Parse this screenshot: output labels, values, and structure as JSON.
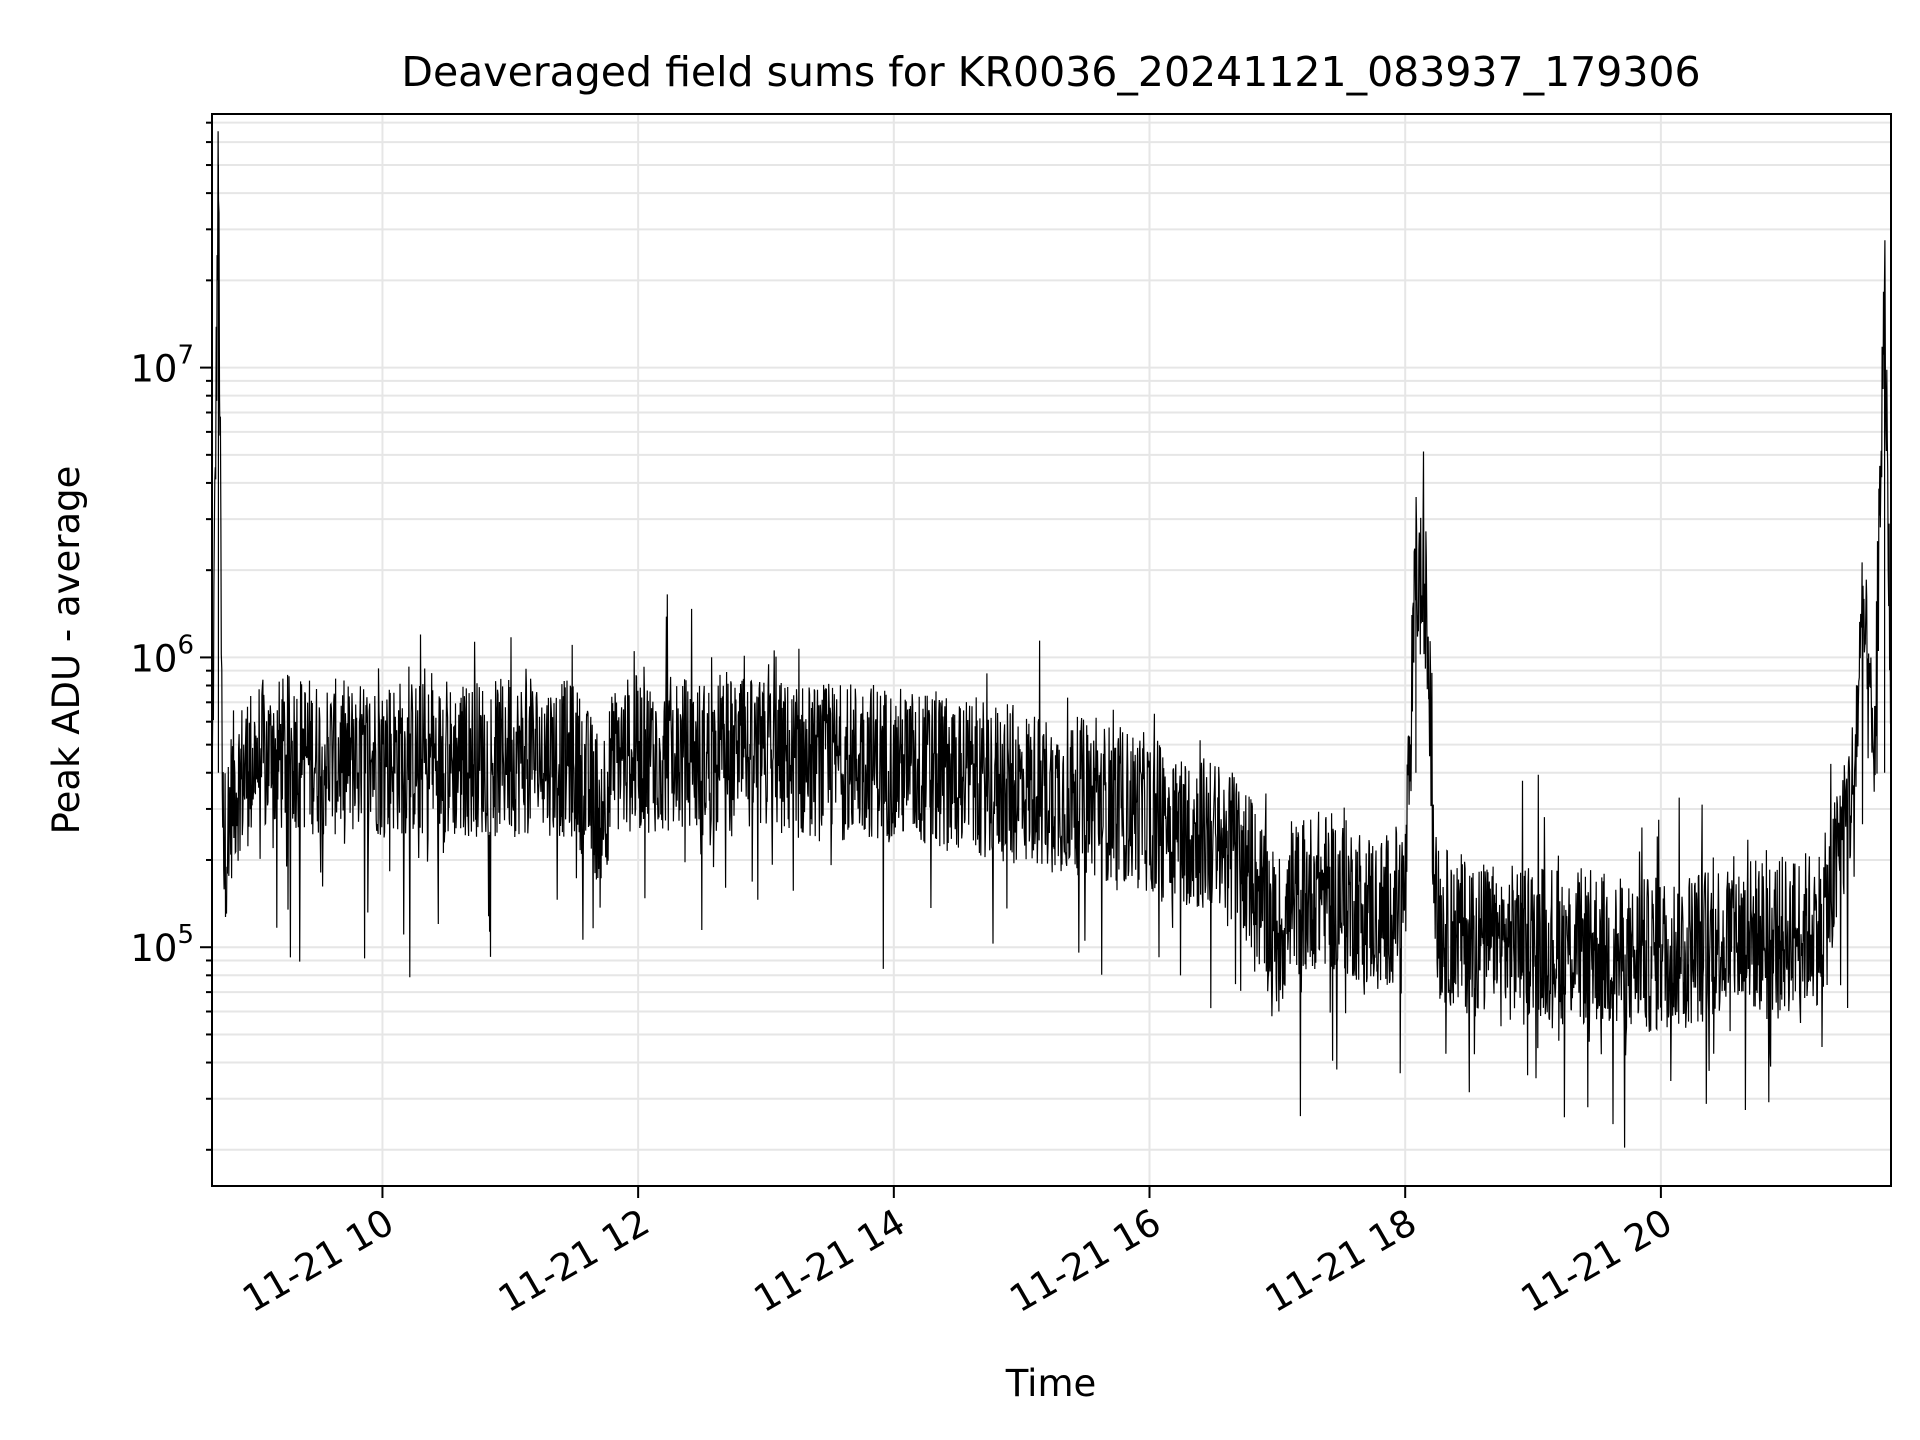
{
  "chart_data": {
    "type": "line",
    "title": "Deaveraged field sums for KR0036_20241121_083937_179306",
    "xlabel": "Time",
    "ylabel": "Peak ADU - average",
    "yscale": "log",
    "xlim": [
      "2024-11-21 08:40",
      "2024-11-21 21:48"
    ],
    "ylim": [
      15000,
      75000000
    ],
    "x_ticks": [
      {
        "value": "2024-11-21 10:00",
        "label": "11-21 10"
      },
      {
        "value": "2024-11-21 12:00",
        "label": "11-21 12"
      },
      {
        "value": "2024-11-21 14:00",
        "label": "11-21 14"
      },
      {
        "value": "2024-11-21 16:00",
        "label": "11-21 16"
      },
      {
        "value": "2024-11-21 18:00",
        "label": "11-21 18"
      },
      {
        "value": "2024-11-21 20:00",
        "label": "11-21 20"
      }
    ],
    "y_ticks": [
      {
        "value": 100000,
        "base": "10",
        "exp": "5"
      },
      {
        "value": 1000000,
        "base": "10",
        "exp": "6"
      },
      {
        "value": 10000000,
        "base": "10",
        "exp": "7"
      }
    ],
    "grid": true,
    "line_color": "#000000",
    "series": [
      {
        "x": [
          "2024-11-21 08:40",
          "2024-11-21 08:43",
          "2024-11-21 08:45",
          "2024-11-21 08:50",
          "2024-11-21 09:00",
          "2024-11-21 09:10",
          "2024-11-21 09:20",
          "2024-11-21 09:30",
          "2024-11-21 09:40",
          "2024-11-21 09:50",
          "2024-11-21 10:00",
          "2024-11-21 10:15",
          "2024-11-21 10:30",
          "2024-11-21 10:45",
          "2024-11-21 11:00",
          "2024-11-21 11:15",
          "2024-11-21 11:30",
          "2024-11-21 11:42",
          "2024-11-21 11:50",
          "2024-11-21 12:00",
          "2024-11-21 12:15",
          "2024-11-21 12:30",
          "2024-11-21 12:45",
          "2024-11-21 13:00",
          "2024-11-21 13:15",
          "2024-11-21 13:30",
          "2024-11-21 13:45",
          "2024-11-21 14:00",
          "2024-11-21 14:15",
          "2024-11-21 14:30",
          "2024-11-21 14:45",
          "2024-11-21 15:00",
          "2024-11-21 15:15",
          "2024-11-21 15:30",
          "2024-11-21 15:45",
          "2024-11-21 16:00",
          "2024-11-21 16:15",
          "2024-11-21 16:30",
          "2024-11-21 16:45",
          "2024-11-21 17:00",
          "2024-11-21 17:10",
          "2024-11-21 17:20",
          "2024-11-21 17:30",
          "2024-11-21 17:40",
          "2024-11-21 17:50",
          "2024-11-21 18:00",
          "2024-11-21 18:05",
          "2024-11-21 18:10",
          "2024-11-21 18:15",
          "2024-11-21 18:30",
          "2024-11-21 18:45",
          "2024-11-21 19:00",
          "2024-11-21 19:15",
          "2024-11-21 19:30",
          "2024-11-21 19:45",
          "2024-11-21 20:00",
          "2024-11-21 20:15",
          "2024-11-21 20:30",
          "2024-11-21 20:45",
          "2024-11-21 21:00",
          "2024-11-21 21:15",
          "2024-11-21 21:20",
          "2024-11-21 21:25",
          "2024-11-21 21:30",
          "2024-11-21 21:35",
          "2024-11-21 21:40",
          "2024-11-21 21:45",
          "2024-11-21 21:48"
        ],
        "y": [
          300000,
          50000000,
          200000,
          350000,
          450000,
          450000,
          480000,
          450000,
          450000,
          440000,
          460000,
          450000,
          430000,
          450000,
          450000,
          460000,
          440000,
          300000,
          450000,
          470000,
          460000,
          450000,
          450000,
          450000,
          440000,
          430000,
          450000,
          430000,
          410000,
          400000,
          380000,
          360000,
          340000,
          330000,
          310000,
          290000,
          260000,
          240000,
          200000,
          110000,
          150000,
          160000,
          150000,
          140000,
          130000,
          150000,
          2000000,
          1500000,
          120000,
          110000,
          100000,
          110000,
          100000,
          100000,
          90000,
          95000,
          100000,
          110000,
          110000,
          110000,
          120000,
          150000,
          250000,
          350000,
          1400000,
          400000,
          19000000,
          600000
        ]
      }
    ]
  }
}
